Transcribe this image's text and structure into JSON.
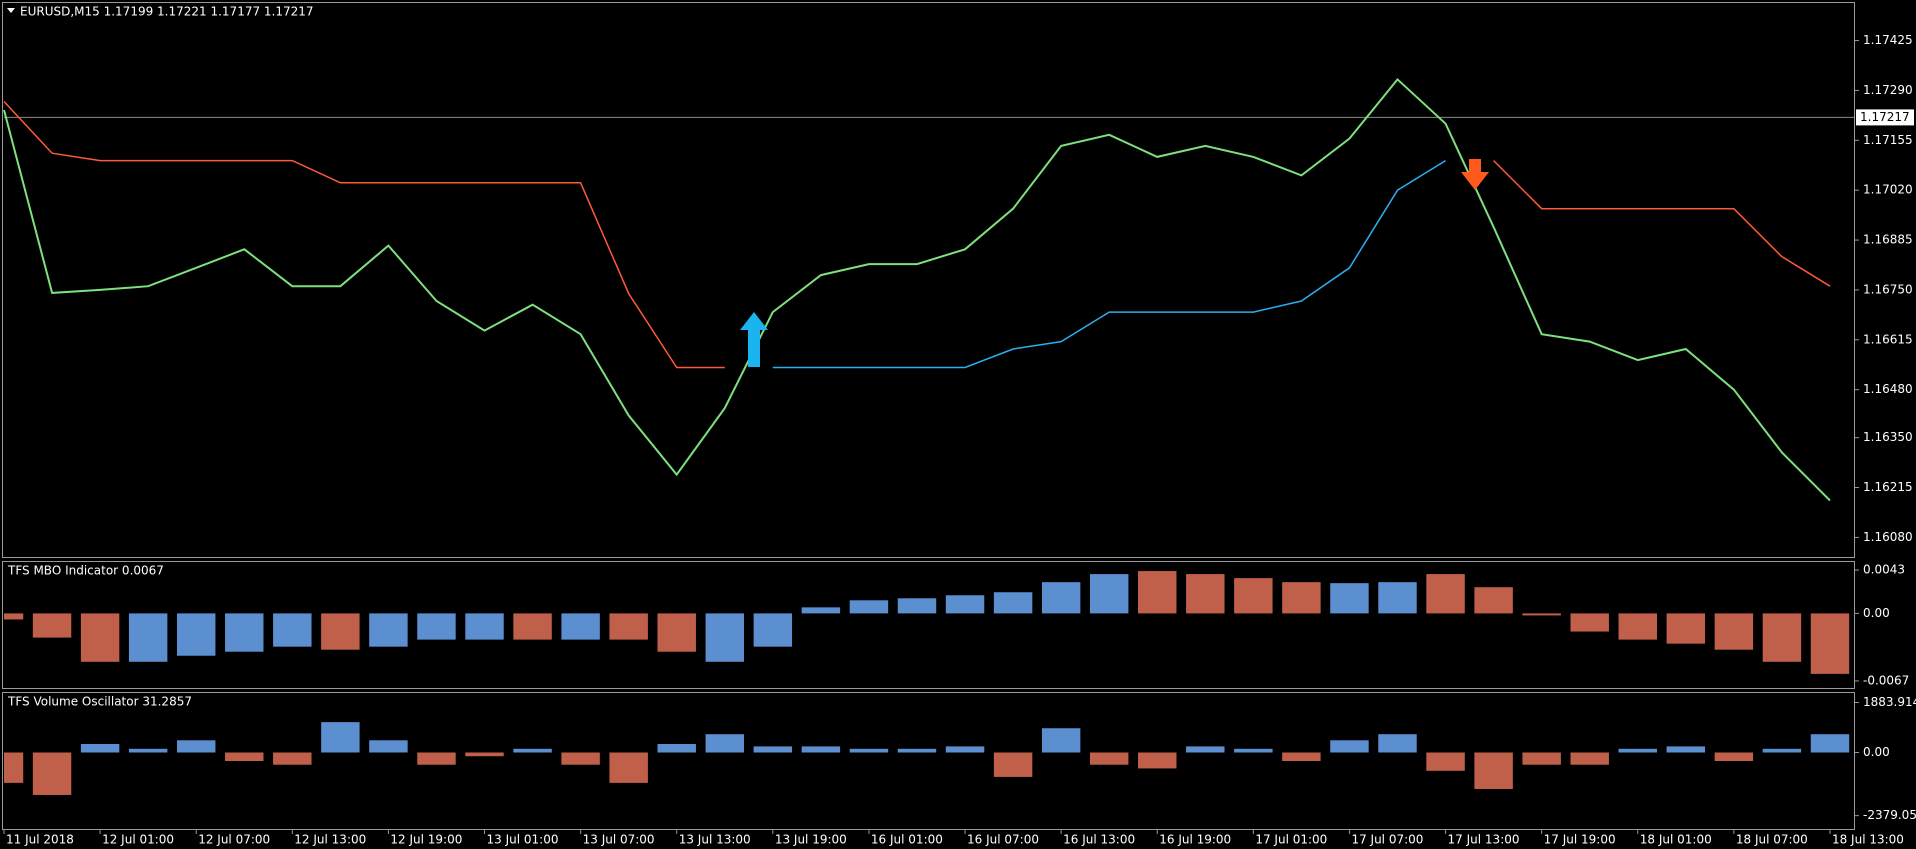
{
  "chart_data": [
    {
      "type": "line",
      "title": "EURUSD,M15  1.17199 1.17221 1.17177 1.17217",
      "categories": [
        "11 Jul 2018",
        null,
        "12 Jul 01:00",
        null,
        "12 Jul 07:00",
        null,
        "12 Jul 13:00",
        null,
        "12 Jul 19:00",
        null,
        "13 Jul 01:00",
        null,
        "13 Jul 07:00",
        null,
        "13 Jul 13:00",
        null,
        "13 Jul 19:00",
        null,
        "16 Jul 01:00",
        null,
        "16 Jul 07:00",
        null,
        "16 Jul 13:00",
        null,
        "16 Jul 19:00",
        null,
        "17 Jul 01:00",
        null,
        "17 Jul 07:00",
        null,
        "17 Jul 13:00",
        null,
        "17 Jul 19:00",
        null,
        "18 Jul 01:00",
        null,
        "18 Jul 07:00",
        null,
        "18 Jul 13:00"
      ],
      "series": [
        {
          "color": "#7ee07e",
          "values": [
            1.17237,
            1.16742,
            1.1675,
            1.1676,
            1.1681,
            1.1686,
            1.1676,
            1.1676,
            1.1687,
            1.1672,
            1.1664,
            1.1671,
            1.1663,
            1.1641,
            1.1625,
            1.1643,
            1.1669,
            1.1679,
            1.1682,
            1.1682,
            1.1686,
            1.1697,
            1.1714,
            1.1717,
            1.1711,
            1.1714,
            1.1711,
            1.1706,
            1.1716,
            1.1732,
            1.172,
            1.1692,
            1.1663,
            1.1661,
            1.1656,
            1.1659,
            1.1648,
            1.1631,
            1.1618
          ]
        },
        {
          "color": "#ff5a36",
          "values": [
            1.1726,
            1.1712,
            1.171,
            1.171,
            1.171,
            1.171,
            1.171,
            1.1704,
            1.1704,
            1.1704,
            1.1704,
            1.1704,
            1.1704,
            1.1674,
            1.1654,
            1.1654,
            null,
            null,
            null,
            null,
            null,
            null,
            null,
            null,
            null,
            null,
            null,
            null,
            null,
            null,
            null,
            1.171,
            1.1697,
            1.1697,
            1.1697,
            1.1697,
            1.1697,
            1.1684,
            1.1676
          ]
        },
        {
          "color": "#2ab0f0",
          "values": [
            null,
            null,
            null,
            null,
            null,
            null,
            null,
            null,
            null,
            null,
            null,
            null,
            null,
            null,
            null,
            null,
            1.1654,
            1.1654,
            1.1654,
            1.1654,
            1.1654,
            1.1659,
            1.1661,
            1.1669,
            1.1669,
            1.1669,
            1.1669,
            1.1672,
            1.1681,
            1.1702,
            1.171,
            null,
            null,
            null,
            null,
            null,
            null,
            null,
            null
          ]
        }
      ],
      "price_line": 1.17217,
      "ylim": [
        1.16027,
        1.17524
      ],
      "yticks": [
        1.17425,
        {
          "value": 1.1729,
          "label": "1.17290"
        },
        1.17155,
        {
          "value": 1.1702,
          "label": "1.17020"
        },
        1.16885,
        {
          "value": 1.1675,
          "label": "1.16750"
        },
        1.16615,
        {
          "value": 1.1648,
          "label": "1.16480"
        },
        {
          "value": 1.1635,
          "label": "1.16350"
        },
        1.16215,
        {
          "value": 1.1608,
          "label": "1.16080"
        }
      ]
    },
    {
      "type": "bar",
      "title": "TFS MBO Indicator 0.0067",
      "values": [
        -0.0006,
        -0.0024,
        -0.0048,
        -0.0048,
        -0.0042,
        -0.0038,
        -0.0033,
        -0.0036,
        -0.0033,
        -0.0026,
        -0.0026,
        -0.0026,
        -0.0026,
        -0.0026,
        -0.0038,
        -0.0048,
        -0.0033,
        0.0006,
        0.0013,
        0.0015,
        0.0018,
        0.0021,
        0.0031,
        0.0039,
        0.0042,
        0.0039,
        0.0035,
        0.0031,
        0.003,
        0.0031,
        0.0039,
        0.0026,
        -0.0002,
        -0.0018,
        -0.0026,
        -0.003,
        -0.0036,
        -0.0048,
        -0.006
      ],
      "colors": [
        "#c0604a",
        "#c0604a",
        "#c0604a",
        "#5b8fd0",
        "#5b8fd0",
        "#5b8fd0",
        "#5b8fd0",
        "#c0604a",
        "#5b8fd0",
        "#5b8fd0",
        "#5b8fd0",
        "#c0604a",
        "#5b8fd0",
        "#c0604a",
        "#c0604a",
        "#5b8fd0",
        "#5b8fd0",
        "#5b8fd0",
        "#5b8fd0",
        "#5b8fd0",
        "#5b8fd0",
        "#5b8fd0",
        "#5b8fd0",
        "#5b8fd0",
        "#c0604a",
        "#c0604a",
        "#c0604a",
        "#c0604a",
        "#5b8fd0",
        "#5b8fd0",
        "#c0604a",
        "#c0604a",
        "#c0604a",
        "#c0604a",
        "#c0604a",
        "#c0604a",
        "#c0604a",
        "#c0604a",
        "#c0604a"
      ],
      "ylim": [
        -0.0074,
        0.005
      ],
      "yticks": [
        0.0043,
        {
          "value": 0,
          "label": "0.00"
        },
        -0.0067
      ]
    },
    {
      "type": "bar",
      "title": "TFS Volume Oscillator 31.2857",
      "values": [
        -1145,
        -1600,
        320,
        140,
        460,
        -320,
        -460,
        1145,
        460,
        -460,
        -140,
        140,
        -460,
        -1145,
        320,
        690,
        230,
        230,
        140,
        140,
        230,
        -920,
        915,
        -460,
        -600,
        230,
        140,
        -320,
        460,
        690,
        -690,
        -1375,
        -460,
        -460,
        140,
        230,
        -320,
        140,
        690
      ],
      "colors": [
        "#c0604a",
        "#c0604a",
        "#5b8fd0",
        "#5b8fd0",
        "#5b8fd0",
        "#c0604a",
        "#c0604a",
        "#5b8fd0",
        "#5b8fd0",
        "#c0604a",
        "#c0604a",
        "#5b8fd0",
        "#c0604a",
        "#c0604a",
        "#5b8fd0",
        "#5b8fd0",
        "#5b8fd0",
        "#5b8fd0",
        "#5b8fd0",
        "#5b8fd0",
        "#5b8fd0",
        "#c0604a",
        "#5b8fd0",
        "#c0604a",
        "#c0604a",
        "#5b8fd0",
        "#5b8fd0",
        "#c0604a",
        "#5b8fd0",
        "#5b8fd0",
        "#c0604a",
        "#c0604a",
        "#c0604a",
        "#c0604a",
        "#5b8fd0",
        "#5b8fd0",
        "#c0604a",
        "#5b8fd0",
        "#5b8fd0"
      ],
      "ylim": [
        -2883,
        2205
      ],
      "yticks": [
        1883.9143,
        {
          "value": 0,
          "label": "0.00"
        },
        -2379.057
      ]
    }
  ]
}
